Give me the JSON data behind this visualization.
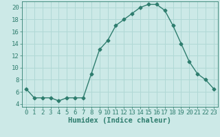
{
  "x": [
    0,
    1,
    2,
    3,
    4,
    5,
    6,
    7,
    8,
    9,
    10,
    11,
    12,
    13,
    14,
    15,
    16,
    17,
    18,
    19,
    20,
    21,
    22,
    23
  ],
  "y": [
    6.5,
    5.0,
    5.0,
    5.0,
    4.5,
    5.0,
    5.0,
    5.0,
    9.0,
    13.0,
    14.5,
    17.0,
    18.0,
    19.0,
    20.0,
    20.5,
    20.5,
    19.5,
    17.0,
    14.0,
    11.0,
    9.0,
    8.0,
    6.5
  ],
  "line_color": "#2e7d6e",
  "marker": "D",
  "marker_size": 2.5,
  "bg_color": "#cce9e7",
  "grid_color": "#b0d8d5",
  "xlabel": "Humidex (Indice chaleur)",
  "xlim": [
    -0.5,
    23.5
  ],
  "ylim": [
    3.5,
    21.0
  ],
  "yticks": [
    4,
    6,
    8,
    10,
    12,
    14,
    16,
    18,
    20
  ],
  "xticks": [
    0,
    1,
    2,
    3,
    4,
    5,
    6,
    7,
    8,
    9,
    10,
    11,
    12,
    13,
    14,
    15,
    16,
    17,
    18,
    19,
    20,
    21,
    22,
    23
  ],
  "tick_color": "#2e7d6e",
  "label_fontsize": 6.5,
  "xlabel_fontsize": 7.5,
  "line_width": 1.0
}
